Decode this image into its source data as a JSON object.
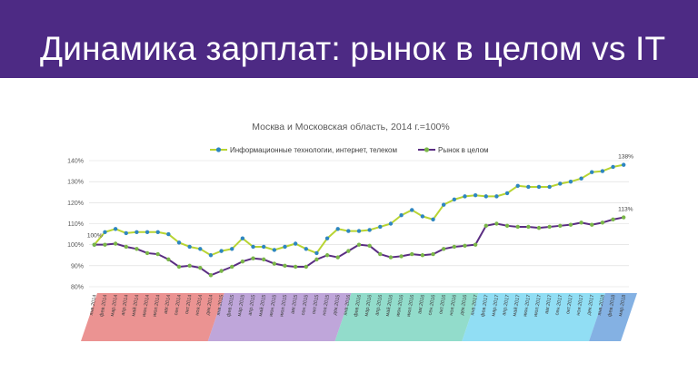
{
  "slide": {
    "title": "Динамика зарплат: рынок в целом vs IT",
    "header_color": "#4d2a84"
  },
  "chart_data": {
    "type": "line",
    "title": "Москва и Московская область, 2014 г.=100%",
    "xlabel": "",
    "ylabel": "",
    "ylim": [
      80,
      140
    ],
    "yticks": [
      "80%",
      "90%",
      "100%",
      "110%",
      "120%",
      "130%",
      "140%"
    ],
    "grid": true,
    "legend_position": "top",
    "x": [
      "янв.2014",
      "фев.2014",
      "мар.2014",
      "апр.2014",
      "май.2014",
      "июн.2014",
      "июл.2014",
      "авг.2014",
      "сен.2014",
      "окт.2014",
      "ноя.2014",
      "дек.2014",
      "янв.2015",
      "фев.2015",
      "мар.2015",
      "апр.2015",
      "май.2015",
      "июн.2015",
      "июл.2015",
      "авг.2015",
      "сен.2015",
      "окт.2015",
      "ноя.2015",
      "дек.2015",
      "янв.2016",
      "фев.2016",
      "мар.2016",
      "апр.2016",
      "май.2016",
      "июн.2016",
      "июл.2016",
      "авг.2016",
      "сен.2016",
      "окт.2016",
      "ноя.2016",
      "дек.2016",
      "янв.2017",
      "фев.2017",
      "мар.2017",
      "апр.2017",
      "май.2017",
      "июн.2017",
      "июл.2017",
      "авг.2017",
      "сен.2017",
      "окт.2017",
      "ноя.2017",
      "дек.2017",
      "янв.2018",
      "фев.2018",
      "мар.2018"
    ],
    "year_bands": [
      {
        "start": 0,
        "end": 11,
        "color": "#e8807f"
      },
      {
        "start": 12,
        "end": 23,
        "color": "#b497d4"
      },
      {
        "start": 24,
        "end": 35,
        "color": "#7fd6c2"
      },
      {
        "start": 36,
        "end": 47,
        "color": "#7ed8f2"
      },
      {
        "start": 48,
        "end": 50,
        "color": "#6fa3de"
      }
    ],
    "series": [
      {
        "name": "Информационные технологии, интернет, телеком",
        "line_color": "#b8d432",
        "marker_color": "#2e86c1",
        "values": [
          100,
          106,
          107.5,
          105.5,
          106,
          106,
          106,
          105,
          101,
          99,
          98,
          95,
          97,
          98,
          103,
          99,
          99,
          97.5,
          99,
          100.5,
          98,
          96,
          103,
          107.5,
          106.5,
          106.5,
          107,
          108.5,
          110,
          114,
          116.5,
          113.5,
          112,
          119,
          121.5,
          123,
          123.5,
          123,
          123,
          124.5,
          128,
          127.5,
          127.5,
          127.5,
          129,
          130,
          131.5,
          134.5,
          135,
          137,
          138
        ],
        "end_label": "138%",
        "start_label": "100%"
      },
      {
        "name": "Рынок в целом",
        "line_color": "#5a2d82",
        "marker_color": "#7ab648",
        "values": [
          100,
          100,
          100.5,
          99,
          98,
          96,
          95.5,
          93,
          89.5,
          90,
          89,
          85.5,
          87.5,
          89.5,
          92,
          93.5,
          93,
          91,
          90,
          89.5,
          89.5,
          93,
          95,
          94,
          97,
          100,
          99.5,
          95.5,
          94,
          94.5,
          95.5,
          95,
          95.5,
          98,
          99,
          99.5,
          100,
          109,
          110,
          109,
          108.5,
          108.5,
          108,
          108.5,
          109,
          109.5,
          110.5,
          109.5,
          110.5,
          112,
          113
        ],
        "end_label": "113%"
      }
    ]
  }
}
